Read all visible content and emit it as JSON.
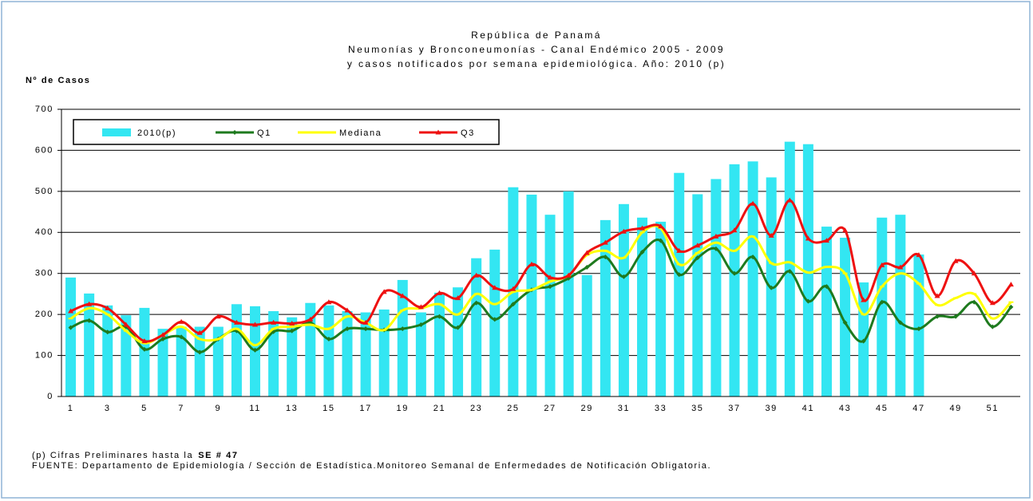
{
  "chart_data": {
    "type": "bar",
    "title": [
      "República de Panamá",
      "Neumonías y Bronconeumonías - Canal Endémico 2005 - 2009",
      "y casos notificados por semana epidemiológica. Año: 2010 (p)"
    ],
    "y_label": "Nº de Casos",
    "categories": [
      "1",
      null,
      "3",
      null,
      "5",
      null,
      "7",
      null,
      "9",
      null,
      "11",
      null,
      "13",
      null,
      "15",
      null,
      "17",
      null,
      "19",
      null,
      "21",
      null,
      "23",
      null,
      "25",
      null,
      "27",
      null,
      "29",
      null,
      "31",
      null,
      "33",
      null,
      "35",
      null,
      "37",
      null,
      "39",
      null,
      "41",
      null,
      "43",
      null,
      "45",
      null,
      "47",
      null,
      "49",
      null,
      "51",
      null
    ],
    "series": [
      {
        "name": "2010(p)",
        "type": "bar",
        "color": "#33e6f2",
        "values": [
          290,
          251,
          222,
          198,
          216,
          165,
          170,
          170,
          170,
          225,
          220,
          208,
          193,
          228,
          222,
          208,
          205,
          212,
          284,
          205,
          253,
          266,
          337,
          358,
          510,
          492,
          443,
          500,
          296,
          430,
          469,
          436,
          426,
          545,
          493,
          530,
          566,
          573,
          534,
          621,
          615,
          414,
          387,
          278,
          436,
          443,
          346,
          null,
          null,
          null,
          null,
          null
        ]
      },
      {
        "name": "Q1",
        "type": "line",
        "marker": "diamond",
        "color": "#1e7a1e",
        "values": [
          168,
          185,
          157,
          170,
          115,
          140,
          145,
          108,
          140,
          160,
          113,
          158,
          160,
          180,
          140,
          165,
          165,
          162,
          165,
          175,
          195,
          168,
          228,
          188,
          225,
          260,
          268,
          288,
          315,
          340,
          292,
          352,
          380,
          297,
          338,
          360,
          300,
          340,
          265,
          305,
          232,
          268,
          180,
          135,
          230,
          180,
          165,
          195,
          195,
          230,
          170,
          218
        ]
      },
      {
        "name": "Mediana",
        "type": "line",
        "marker": "dash",
        "color": "#ffff00",
        "values": [
          190,
          215,
          200,
          160,
          130,
          150,
          170,
          140,
          140,
          165,
          125,
          165,
          170,
          175,
          165,
          195,
          180,
          162,
          210,
          215,
          225,
          200,
          250,
          225,
          255,
          260,
          280,
          295,
          345,
          355,
          338,
          400,
          410,
          322,
          350,
          375,
          355,
          390,
          325,
          327,
          302,
          316,
          300,
          200,
          268,
          300,
          275,
          223,
          240,
          250,
          190,
          230
        ]
      },
      {
        "name": "Q3",
        "type": "line",
        "marker": "triangle",
        "color": "#ee1111",
        "values": [
          208,
          225,
          215,
          175,
          135,
          150,
          182,
          155,
          195,
          180,
          175,
          180,
          178,
          188,
          230,
          210,
          180,
          255,
          245,
          218,
          252,
          240,
          295,
          265,
          262,
          322,
          290,
          295,
          350,
          375,
          402,
          410,
          415,
          355,
          368,
          390,
          405,
          470,
          392,
          478,
          385,
          380,
          405,
          235,
          320,
          315,
          345,
          245,
          330,
          300,
          228,
          273
        ]
      }
    ],
    "ylim": [
      0,
      700
    ],
    "yticks": [
      0,
      100,
      200,
      300,
      400,
      500,
      600,
      700
    ],
    "grid": true,
    "legend": "top-left",
    "note": {
      "text": "(p) Cifras Preliminares hasta la",
      "bold": "SE # 47"
    },
    "source": "FUENTE: Departamento de Epidemiología / Sección de Estadística.Monitoreo Semanal de Enfermedades de Notificación Obligatoria."
  }
}
